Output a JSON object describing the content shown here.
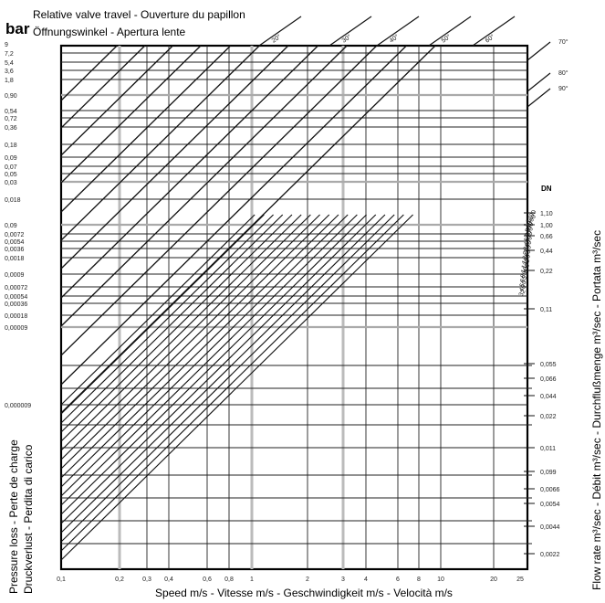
{
  "chart_data": {
    "type": "line",
    "unit_label": "bar",
    "header_line1": "Relative valve travel - Ouverture du papillon",
    "header_line2": "Öffnungswinkel - Apertura lente",
    "xlabel": "Speed  m/s - Vitesse m/s - Geschwindigkeit m/s - Velocità m/s",
    "ylabel_line1": "Pressure loss - Perte de charge",
    "ylabel_line2": "Druckverlust - Perdita di carico",
    "right_label": "Flow rate m³/sec - Débit m³/sec - Durchflußmenge m³/sec - Portata m³/sec",
    "dn_label": "DN",
    "x_ticks": [
      "0,1",
      "0,2",
      "0,3",
      "0,4",
      "0,6",
      "0,8",
      "1",
      "2",
      "3",
      "4",
      "6",
      "8",
      "10",
      "20",
      "25"
    ],
    "y_ticks": [
      "9",
      "7,2",
      "5,4",
      "3,6",
      "1,8",
      "0,90",
      "0,54",
      "0,72",
      "0,36",
      "0,18",
      "0,09",
      "0,07",
      "0,05",
      "0,03",
      "0,018",
      "0,09",
      "0,0072",
      "0,0054",
      "0,0036",
      "0,0018",
      "0,0009",
      "0,00072",
      "0,00054",
      "0,00036",
      "0,00018",
      "0,00009",
      "0,000009"
    ],
    "angle_labels": [
      "20°",
      "30°",
      "40°",
      "50°",
      "60°",
      "70°",
      "80°",
      "90°"
    ],
    "flow_ticks": [
      "1,10",
      "1,00",
      "0,66",
      "0,44",
      "0,22",
      "0,11",
      "0,055",
      "0,066",
      "0,044",
      "0,022",
      "0,011",
      "0,099",
      "0,0066",
      "0,0054",
      "0,0044",
      "0,0022"
    ],
    "dn_sizes": [
      "1200",
      "1000",
      "800",
      "600",
      "500",
      "400",
      "300",
      "250",
      "200",
      "150",
      "125",
      "100",
      "80",
      "65",
      "50",
      "40",
      "32"
    ]
  }
}
